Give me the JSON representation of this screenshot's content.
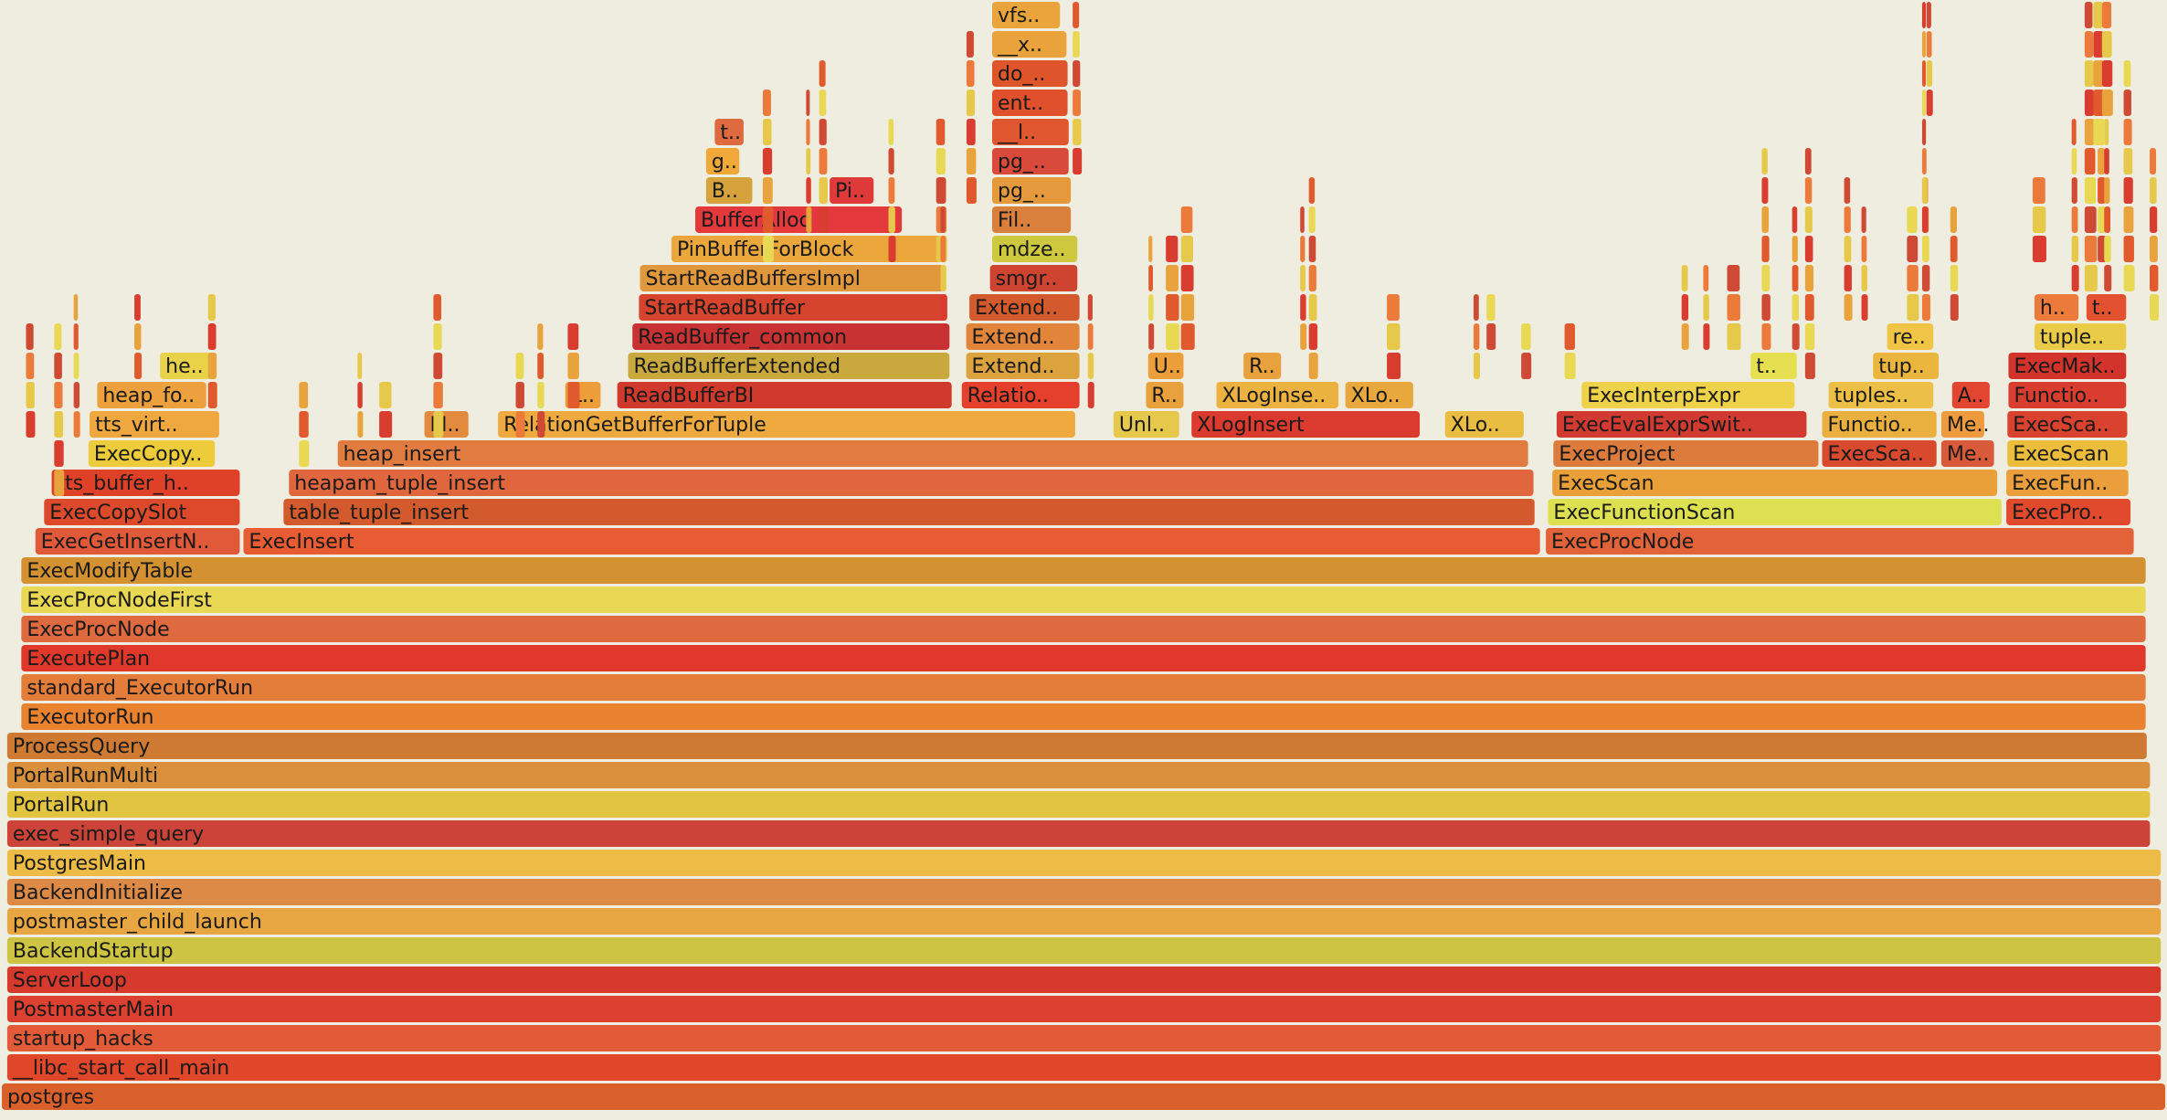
{
  "chart_data": {
    "type": "flamegraph",
    "unit": "fraction of total samples",
    "root": "postgres",
    "frames": [
      {
        "depth": 0,
        "name": "postgres",
        "label": "postgres",
        "start": 0.0,
        "width": 1.0,
        "color": "#d95f2b"
      },
      {
        "depth": 1,
        "name": "__libc_start_call_main",
        "label": "__libc_start_call_main",
        "start": 0.0025,
        "width": 0.9955,
        "color": "#e0462a"
      },
      {
        "depth": 2,
        "name": "startup_hacks",
        "label": "startup_hacks",
        "start": 0.0025,
        "width": 0.9955,
        "color": "#e25a38"
      },
      {
        "depth": 3,
        "name": "PostmasterMain",
        "label": "PostmasterMain",
        "start": 0.0025,
        "width": 0.9955,
        "color": "#db4030"
      },
      {
        "depth": 4,
        "name": "ServerLoop",
        "label": "ServerLoop",
        "start": 0.0025,
        "width": 0.9955,
        "color": "#d63a2c"
      },
      {
        "depth": 5,
        "name": "BackendStartup",
        "label": "BackendStartup",
        "start": 0.0025,
        "width": 0.9955,
        "color": "#cdc444"
      },
      {
        "depth": 6,
        "name": "postmaster_child_launch",
        "label": "postmaster_child_launch",
        "start": 0.0025,
        "width": 0.9955,
        "color": "#e8a642"
      },
      {
        "depth": 7,
        "name": "BackendInitialize",
        "label": "BackendInitialize",
        "start": 0.0025,
        "width": 0.9955,
        "color": "#dd8a46"
      },
      {
        "depth": 8,
        "name": "PostgresMain",
        "label": "PostgresMain",
        "start": 0.0025,
        "width": 0.9955,
        "color": "#ecbc46"
      },
      {
        "depth": 9,
        "name": "exec_simple_query",
        "label": "exec_simple_query",
        "start": 0.0025,
        "width": 0.9905,
        "color": "#cc4437"
      },
      {
        "depth": 10,
        "name": "PortalRun",
        "label": "PortalRun",
        "start": 0.0025,
        "width": 0.9905,
        "color": "#e1c440"
      },
      {
        "depth": 11,
        "name": "PortalRunMulti",
        "label": "PortalRunMulti",
        "start": 0.0025,
        "width": 0.9905,
        "color": "#d98f3c"
      },
      {
        "depth": 12,
        "name": "ProcessQuery",
        "label": "ProcessQuery",
        "start": 0.0025,
        "width": 0.989,
        "color": "#cf7a33"
      },
      {
        "depth": 13,
        "name": "ExecutorRun",
        "label": "ExecutorRun",
        "start": 0.009,
        "width": 0.982,
        "color": "#e8822f"
      },
      {
        "depth": 14,
        "name": "standard_ExecutorRun",
        "label": "standard_ExecutorRun",
        "start": 0.009,
        "width": 0.982,
        "color": "#e37d39"
      },
      {
        "depth": 15,
        "name": "ExecutePlan",
        "label": "ExecutePlan",
        "start": 0.009,
        "width": 0.982,
        "color": "#e0392b"
      },
      {
        "depth": 16,
        "name": "ExecProcNode",
        "label": "ExecProcNode",
        "start": 0.009,
        "width": 0.982,
        "color": "#e06a40"
      },
      {
        "depth": 17,
        "name": "ExecProcNodeFirst",
        "label": "ExecProcNodeFirst",
        "start": 0.009,
        "width": 0.982,
        "color": "#e8d854"
      },
      {
        "depth": 18,
        "name": "ExecModifyTable",
        "label": "ExecModifyTable",
        "start": 0.009,
        "width": 0.982,
        "color": "#d39131"
      },
      {
        "depth": 19,
        "name": "ExecGetInsertNewTuple",
        "label": "ExecGetInsertN..",
        "start": 0.0155,
        "width": 0.096,
        "color": "#e05a3a"
      },
      {
        "depth": 19,
        "name": "ExecInsert",
        "label": "ExecInsert",
        "start": 0.1115,
        "width": 0.6,
        "color": "#e75c33"
      },
      {
        "depth": 19,
        "name": "ExecProcNode",
        "label": "ExecProcNode",
        "start": 0.7125,
        "width": 0.273,
        "color": "#e2623a"
      },
      {
        "depth": 20,
        "name": "ExecCopySlot",
        "label": "ExecCopySlot",
        "start": 0.0195,
        "width": 0.092,
        "color": "#dc4a2b"
      },
      {
        "depth": 20,
        "name": "table_tuple_insert",
        "label": "table_tuple_insert",
        "start": 0.13,
        "width": 0.579,
        "color": "#d35a2c"
      },
      {
        "depth": 20,
        "name": "ExecFunctionScan",
        "label": "ExecFunctionScan",
        "start": 0.7135,
        "width": 0.211,
        "color": "#dde050"
      },
      {
        "depth": 20,
        "name": "ExecProcNode",
        "label": "ExecPro..",
        "start": 0.925,
        "width": 0.059,
        "color": "#e24a2e"
      },
      {
        "depth": 21,
        "name": "tts_buffer_heap_copyslot",
        "label": "tts_buffer_h..",
        "start": 0.023,
        "width": 0.0885,
        "color": "#de4128"
      },
      {
        "depth": 21,
        "name": "heapam_tuple_insert",
        "label": "heapam_tuple_insert",
        "start": 0.1325,
        "width": 0.576,
        "color": "#e0663d"
      },
      {
        "depth": 21,
        "name": "ExecScan",
        "label": "ExecScan",
        "start": 0.7155,
        "width": 0.207,
        "color": "#e9a038"
      },
      {
        "depth": 21,
        "name": "ExecFunctionScan",
        "label": "ExecFun..",
        "start": 0.925,
        "width": 0.058,
        "color": "#ea9e3c"
      },
      {
        "depth": 22,
        "name": "ExecCopySlotHeapTuple",
        "label": "ExecCopy..",
        "start": 0.04,
        "width": 0.06,
        "color": "#eccc3a"
      },
      {
        "depth": 22,
        "name": "heap_insert",
        "label": "heap_insert",
        "start": 0.155,
        "width": 0.551,
        "color": "#e07c40"
      },
      {
        "depth": 22,
        "name": "ExecProject",
        "label": "ExecProject",
        "start": 0.716,
        "width": 0.124,
        "color": "#dc7b3c"
      },
      {
        "depth": 22,
        "name": "ExecScan",
        "label": "ExecSca..",
        "start": 0.84,
        "width": 0.0545,
        "color": "#d84a2e"
      },
      {
        "depth": 22,
        "name": "ExecMakeTableFunctionResult",
        "label": "Me..",
        "start": 0.895,
        "width": 0.026,
        "color": "#d85a3a"
      },
      {
        "depth": 22,
        "name": "ExecScan",
        "label": "ExecScan",
        "start": 0.9255,
        "width": 0.057,
        "color": "#ebbd3a"
      },
      {
        "depth": 23,
        "name": "tts_virtual_copyslot",
        "label": "tts_virt..",
        "start": 0.0405,
        "width": 0.0615,
        "color": "#eea83f"
      },
      {
        "depth": 23,
        "name": "M",
        "label": "M..",
        "start": 0.195,
        "width": 0.022,
        "color": "#e28a3e"
      },
      {
        "depth": 23,
        "name": "RelationGetBufferForTuple",
        "label": "RelationGetBufferForTuple",
        "start": 0.229,
        "width": 0.268,
        "color": "#eeaa3e"
      },
      {
        "depth": 23,
        "name": "UnlockReleaseBuffer",
        "label": "Unl..",
        "start": 0.513,
        "width": 0.032,
        "color": "#e6c84a"
      },
      {
        "depth": 23,
        "name": "XLogInsert",
        "label": "XLogInsert",
        "start": 0.549,
        "width": 0.107,
        "color": "#db3a2e"
      },
      {
        "depth": 23,
        "name": "XLogInsert",
        "label": "XLo..",
        "start": 0.666,
        "width": 0.038,
        "color": "#e9bd42"
      },
      {
        "depth": 23,
        "name": "ExecEvalExprSwitchContext",
        "label": "ExecEvalExprSwit..",
        "start": 0.7175,
        "width": 0.117,
        "color": "#d03a30"
      },
      {
        "depth": 23,
        "name": "FunctionCall",
        "label": "Functio..",
        "start": 0.84,
        "width": 0.0545,
        "color": "#e9b040"
      },
      {
        "depth": 23,
        "name": "ExecMakeTableFunctionResult",
        "label": "Me..",
        "start": 0.895,
        "width": 0.0215,
        "color": "#ee9a3e"
      },
      {
        "depth": 23,
        "name": "ExecScan",
        "label": "ExecSca..",
        "start": 0.9255,
        "width": 0.057,
        "color": "#d9422e"
      },
      {
        "depth": 24,
        "name": "heap_form_tuple",
        "label": "heap_fo..",
        "start": 0.044,
        "width": 0.052,
        "color": "#eca03e"
      },
      {
        "depth": 24,
        "name": "L",
        "label": "L..",
        "start": 0.26,
        "width": 0.018,
        "color": "#ed9e3a"
      },
      {
        "depth": 24,
        "name": "ReadBufferBI",
        "label": "ReadBufferBI",
        "start": 0.284,
        "width": 0.156,
        "color": "#d03a2c"
      },
      {
        "depth": 24,
        "name": "RelationAddBlocks",
        "label": "Relatio..",
        "start": 0.443,
        "width": 0.056,
        "color": "#e4402c"
      },
      {
        "depth": 24,
        "name": "R",
        "label": "R..",
        "start": 0.528,
        "width": 0.019,
        "color": "#e9a13e"
      },
      {
        "depth": 24,
        "name": "XLogInsertRecord",
        "label": "XLogInse..",
        "start": 0.5605,
        "width": 0.058,
        "color": "#ecb23f"
      },
      {
        "depth": 24,
        "name": "XLogInsertRecord",
        "label": "XLo..",
        "start": 0.62,
        "width": 0.033,
        "color": "#e9a83e"
      },
      {
        "depth": 24,
        "name": "ExecInterpExpr",
        "label": "ExecInterpExpr",
        "start": 0.729,
        "width": 0.1,
        "color": "#eed24a"
      },
      {
        "depth": 24,
        "name": "tuplestore_gettupleslot",
        "label": "tuples..",
        "start": 0.843,
        "width": 0.05,
        "color": "#ecc046"
      },
      {
        "depth": 24,
        "name": "A",
        "label": "A..",
        "start": 0.9,
        "width": 0.019,
        "color": "#e24530"
      },
      {
        "depth": 24,
        "name": "FunctionCall",
        "label": "Functio..",
        "start": 0.926,
        "width": 0.056,
        "color": "#d93d30"
      },
      {
        "depth": 25,
        "name": "heap_fill_tuple",
        "label": "he..",
        "start": 0.073,
        "width": 0.027,
        "color": "#e9d247"
      },
      {
        "depth": 25,
        "name": "ReadBufferExtended",
        "label": "ReadBufferExtended",
        "start": 0.289,
        "width": 0.15,
        "color": "#c9a93e"
      },
      {
        "depth": 25,
        "name": "ExtendBufferedRel",
        "label": "Extend..",
        "start": 0.445,
        "width": 0.054,
        "color": "#dca23e"
      },
      {
        "depth": 25,
        "name": "U",
        "label": "U..",
        "start": 0.529,
        "width": 0.018,
        "color": "#ec9e3a"
      },
      {
        "depth": 25,
        "name": "R",
        "label": "R..",
        "start": 0.573,
        "width": 0.019,
        "color": "#e9a13e"
      },
      {
        "depth": 25,
        "name": "t",
        "label": "t..",
        "start": 0.807,
        "width": 0.023,
        "color": "#e6e051"
      },
      {
        "depth": 25,
        "name": "tuplestore_gettuple",
        "label": "tup..",
        "start": 0.8635,
        "width": 0.032,
        "color": "#eab63e"
      },
      {
        "depth": 25,
        "name": "ExecMakeTableFunctionResult",
        "label": "ExecMak..",
        "start": 0.926,
        "width": 0.056,
        "color": "#d2342c"
      },
      {
        "depth": 26,
        "name": "ReadBuffer_common",
        "label": "ReadBuffer_common",
        "start": 0.291,
        "width": 0.148,
        "color": "#c83232"
      },
      {
        "depth": 26,
        "name": "ExtendBufferedRelBy",
        "label": "Extend..",
        "start": 0.445,
        "width": 0.054,
        "color": "#e0853a"
      },
      {
        "depth": 26,
        "name": "readtup",
        "label": "re..",
        "start": 0.87,
        "width": 0.023,
        "color": "#f0c444"
      },
      {
        "depth": 26,
        "name": "tuplestore_puttuple",
        "label": "tuple..",
        "start": 0.938,
        "width": 0.044,
        "color": "#e9cb47"
      },
      {
        "depth": 27,
        "name": "StartReadBuffer",
        "label": "StartReadBuffer",
        "start": 0.294,
        "width": 0.144,
        "color": "#d6442d"
      },
      {
        "depth": 27,
        "name": "ExtendBufferedRelCommon",
        "label": "Extend..",
        "start": 0.4465,
        "width": 0.0525,
        "color": "#d35a2c"
      },
      {
        "depth": 27,
        "name": "h",
        "label": "h..",
        "start": 0.938,
        "width": 0.022,
        "color": "#ec7a3a"
      },
      {
        "depth": 27,
        "name": "t",
        "label": "t..",
        "start": 0.962,
        "width": 0.02,
        "color": "#e35230"
      },
      {
        "depth": 28,
        "name": "StartReadBuffersImpl",
        "label": "StartReadBuffersImpl",
        "start": 0.2945,
        "width": 0.142,
        "color": "#e1983c"
      },
      {
        "depth": 28,
        "name": "smgrzeroextend",
        "label": "smgr..",
        "start": 0.456,
        "width": 0.042,
        "color": "#ce4430"
      },
      {
        "depth": 29,
        "name": "PinBufferForBlock",
        "label": "PinBufferForBlock",
        "start": 0.309,
        "width": 0.128,
        "color": "#eba63c"
      },
      {
        "depth": 29,
        "name": "mdzeroextend",
        "label": "mdze..",
        "start": 0.457,
        "width": 0.041,
        "color": "#cdc83e"
      },
      {
        "depth": 30,
        "name": "BufferAlloc",
        "label": "BufferAlloc",
        "start": 0.32,
        "width": 0.097,
        "color": "#e3383c"
      },
      {
        "depth": 30,
        "name": "FileZero",
        "label": "Fil..",
        "start": 0.457,
        "width": 0.038,
        "color": "#d9803c"
      },
      {
        "depth": 31,
        "name": "B",
        "label": "B..",
        "start": 0.325,
        "width": 0.023,
        "color": "#d6a23c"
      },
      {
        "depth": 31,
        "name": "Pi",
        "label": "Pi..",
        "start": 0.382,
        "width": 0.022,
        "color": "#df3a3a"
      },
      {
        "depth": 31,
        "name": "pg_pwrite_zeros",
        "label": "pg_..",
        "start": 0.457,
        "width": 0.038,
        "color": "#e49a3c"
      },
      {
        "depth": 32,
        "name": "g",
        "label": "g..",
        "start": 0.325,
        "width": 0.017,
        "color": "#f0a838"
      },
      {
        "depth": 32,
        "name": "pg_pwritev",
        "label": "pg_..",
        "start": 0.457,
        "width": 0.037,
        "color": "#d84a3a"
      },
      {
        "depth": 33,
        "name": "t",
        "label": "t..",
        "start": 0.329,
        "width": 0.015,
        "color": "#de6a40"
      },
      {
        "depth": 33,
        "name": "__libc_pwritev",
        "label": "__l..",
        "start": 0.457,
        "width": 0.037,
        "color": "#e0562e"
      },
      {
        "depth": 34,
        "name": "entry_SYSCALL",
        "label": "ent..",
        "start": 0.457,
        "width": 0.0365,
        "color": "#e0502c"
      },
      {
        "depth": 35,
        "name": "do_syscall",
        "label": "do_..",
        "start": 0.457,
        "width": 0.0365,
        "color": "#de552c"
      },
      {
        "depth": 36,
        "name": "__x64_sys_pwritev",
        "label": "__x..",
        "start": 0.457,
        "width": 0.036,
        "color": "#eaa33c"
      },
      {
        "depth": 37,
        "name": "vfs_writev",
        "label": "vfs..",
        "start": 0.457,
        "width": 0.033,
        "color": "#e9a53c"
      }
    ]
  }
}
